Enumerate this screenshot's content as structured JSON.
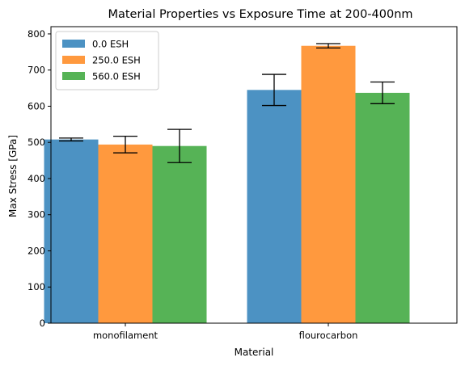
{
  "chart_data": {
    "type": "bar",
    "title": "Material Properties vs Exposure Time at 200-400nm",
    "xlabel": "Material",
    "ylabel": "Max Stress [GPa]",
    "categories": [
      "monofilament",
      "flourocarbon"
    ],
    "ylim": [
      0,
      820
    ],
    "yticks": [
      0,
      100,
      200,
      300,
      400,
      500,
      600,
      700,
      800
    ],
    "series": [
      {
        "name": "0.0 ESH",
        "color": "#1f77b4",
        "values": [
          508,
          645
        ],
        "errors": [
          4,
          43
        ]
      },
      {
        "name": "250.0 ESH",
        "color": "#ff7f0e",
        "values": [
          494,
          767
        ],
        "errors": [
          23,
          6
        ]
      },
      {
        "name": "560.0 ESH",
        "color": "#2ca02c",
        "values": [
          490,
          637
        ],
        "errors": [
          46,
          30
        ]
      }
    ],
    "legend_position": "top-left",
    "grid": false
  }
}
